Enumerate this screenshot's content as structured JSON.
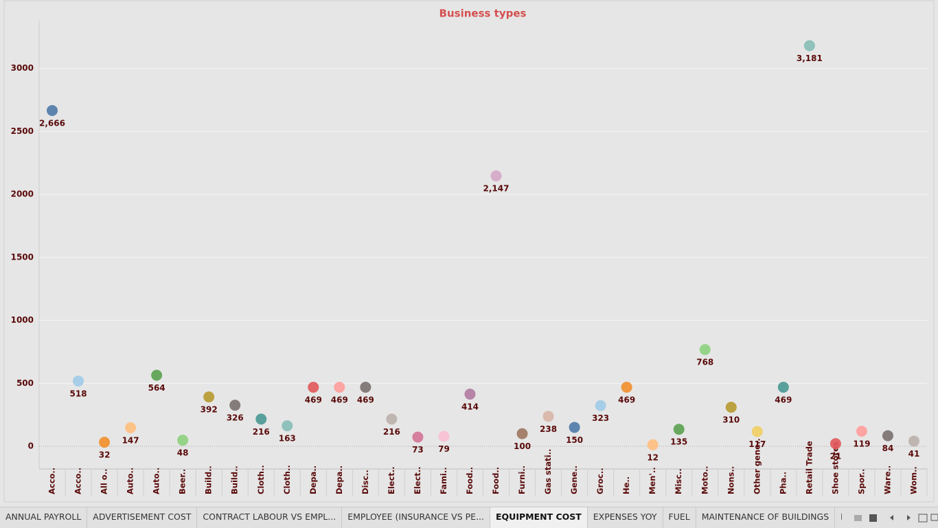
{
  "chart_data": {
    "type": "scatter",
    "title": "Business types",
    "categories": [
      "Acco..",
      "Acco..",
      "All o..",
      "Auto..",
      "Auto..",
      "Beer..",
      "Build..",
      "Build..",
      "Cloth..",
      "Cloth..",
      "Depa..",
      "Depa..",
      "Disc..",
      "Elect..",
      "Elect..",
      "Fami..",
      "Food..",
      "Food..",
      "Furni..",
      "Gas stati..",
      "Gene..",
      "Groc..",
      "He..",
      "Men'..",
      "Misc..",
      "Moto..",
      "Nons..",
      "Other gene..",
      "Pha..",
      "Retail Trade",
      "Shoe stores",
      "Spor..",
      "Ware..",
      "Wom.."
    ],
    "values": [
      2666,
      518,
      32,
      147,
      564,
      48,
      392,
      326,
      216,
      163,
      469,
      469,
      469,
      216,
      73,
      79,
      414,
      2147,
      100,
      238,
      150,
      323,
      469,
      12,
      135,
      768,
      310,
      117,
      469,
      3181,
      21,
      119,
      84,
      41
    ],
    "value_labels": [
      "2,666",
      "518",
      "32",
      "147",
      "564",
      "48",
      "392",
      "326",
      "216",
      "163",
      "469",
      "469",
      "469",
      "216",
      "73",
      "79",
      "414",
      "2,147",
      "100",
      "238",
      "150",
      "323",
      "469",
      "12",
      "135",
      "768",
      "310",
      "117",
      "469",
      "3,181",
      "21",
      "119",
      "84",
      "41"
    ],
    "colors": [
      "#4e79a7",
      "#a0cbe8",
      "#f28e2b",
      "#ffbe7d",
      "#59a14f",
      "#8cd17d",
      "#b6992d",
      "#79706e",
      "#499894",
      "#86bcb6",
      "#e15759",
      "#ff9d9a",
      "#79706e",
      "#bab0ac",
      "#d37295",
      "#fabfd2",
      "#b07aa1",
      "#d4a6c8",
      "#9d7660",
      "#d7b5a6",
      "#4e79a7",
      "#a0cbe8",
      "#f28e2b",
      "#ffbe7d",
      "#59a14f",
      "#8cd17d",
      "#b6992d",
      "#f1ce63",
      "#499894",
      "#86bcb6",
      "#e15759",
      "#ff9d9a",
      "#79706e",
      "#bab0ac"
    ],
    "ylim": [
      -180,
      3380
    ],
    "yticks": [
      0,
      500,
      1000,
      1500,
      2000,
      2500,
      3000
    ],
    "grid": true
  },
  "tabs": [
    {
      "label": "ANNUAL PAYROLL",
      "active": false
    },
    {
      "label": "ADVERTISEMENT COST",
      "active": false
    },
    {
      "label": "CONTRACT LABOUR VS EMPL...",
      "active": false
    },
    {
      "label": "EMPLOYEE (INSURANCE VS PE...",
      "active": false
    },
    {
      "label": "EQUIPMENT COST",
      "active": true
    },
    {
      "label": "EXPENSES YOY",
      "active": false
    },
    {
      "label": "FUEL",
      "active": false
    },
    {
      "label": "MAINTENANCE OF BUILDINGS",
      "active": false
    },
    {
      "label": "POWER EXPEN",
      "active": false
    }
  ]
}
